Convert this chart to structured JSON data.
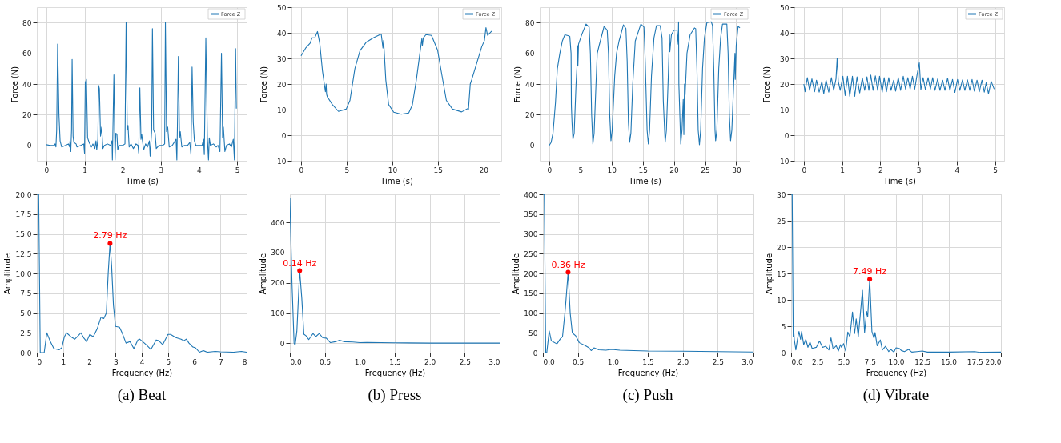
{
  "chart_data": [
    {
      "type": "line",
      "xlabel": "Time (s)",
      "ylabel": "Force (N)",
      "xlim": [
        -0.25,
        5.25
      ],
      "ylim": [
        -10,
        90
      ],
      "xticks": [
        0,
        1,
        2,
        3,
        4,
        5
      ],
      "yticks": [
        0,
        20,
        40,
        60,
        80
      ],
      "grid": true,
      "legend": "top right",
      "series": [
        {
          "name": "Force Z",
          "color": "#1f77b4",
          "x": [
            0,
            0.1,
            0.2,
            0.23,
            0.25,
            0.27,
            0.295,
            0.33,
            0.36,
            0.4,
            0.5,
            0.58,
            0.61,
            0.62,
            0.64,
            0.66,
            0.675,
            0.7,
            0.72,
            0.78,
            0.8,
            0.9,
            0.98,
            1.0,
            1.02,
            1.05,
            1.08,
            1.12,
            1.18,
            1.22,
            1.27,
            1.3,
            1.32,
            1.35,
            1.37,
            1.39,
            1.42,
            1.45,
            1.48,
            1.52,
            1.6,
            1.68,
            1.72,
            1.73,
            1.77,
            1.8,
            1.82,
            1.85,
            1.87,
            1.9,
            2.0,
            2.06,
            2.09,
            2.12,
            2.14,
            2.17,
            2.22,
            2.28,
            2.35,
            2.4,
            2.42,
            2.45,
            2.48,
            2.5,
            2.55,
            2.6,
            2.65,
            2.7,
            2.72,
            2.76,
            2.78,
            2.81,
            2.85,
            2.88,
            2.95,
            3.05,
            3.1,
            3.12,
            3.15,
            3.18,
            3.22,
            3.3,
            3.4,
            3.42,
            3.44,
            3.46,
            3.49,
            3.51,
            3.55,
            3.62,
            3.7,
            3.76,
            3.79,
            3.82,
            3.85,
            3.88,
            3.92,
            4.0,
            4.08,
            4.12,
            4.14,
            4.18,
            4.22,
            4.25,
            4.27,
            4.3,
            4.38,
            4.45,
            4.5,
            4.55,
            4.59,
            4.62,
            4.64,
            4.68,
            4.72,
            4.8,
            4.85,
            4.9,
            4.93,
            4.96,
            4.98
          ],
          "values": [
            0.5,
            0,
            0,
            1,
            -1,
            10,
            66,
            20,
            3,
            -1,
            0,
            1,
            -1,
            3,
            -4,
            10,
            56,
            6,
            2,
            1,
            -1,
            0,
            1,
            -5,
            41,
            43,
            5,
            2,
            -1,
            1,
            -2,
            3,
            -3,
            4,
            39,
            37,
            6,
            12,
            -2,
            0,
            1,
            0,
            3,
            -9.5,
            46,
            -9.5,
            8,
            7,
            -3,
            0,
            0,
            1,
            80,
            10,
            13,
            -1,
            1,
            -2,
            1,
            0,
            -5,
            37.5,
            4,
            7,
            -3,
            1,
            -1,
            3,
            -7,
            10,
            76,
            10,
            8,
            -2,
            0,
            0,
            1,
            80,
            9,
            12,
            -1,
            0,
            4,
            -9.5,
            20,
            58,
            5,
            9,
            -1,
            0,
            0,
            2,
            -6,
            51,
            15,
            3,
            0,
            0,
            0,
            4,
            -6,
            70,
            5,
            -9.5,
            5,
            0,
            1,
            -1,
            0,
            -4,
            60,
            5,
            12,
            -4,
            0,
            1,
            -1,
            4,
            -9.5,
            63,
            24
          ]
        }
      ]
    },
    {
      "type": "line",
      "xlabel": "Time (s)",
      "ylabel": "Force (N)",
      "xlim": [
        -1.05,
        21.95
      ],
      "ylim": [
        -10,
        50
      ],
      "xticks": [
        0,
        5,
        10,
        15,
        20
      ],
      "yticks": [
        -10,
        0,
        10,
        20,
        30,
        40,
        50
      ],
      "grid": true,
      "legend": "top right",
      "series": [
        {
          "name": "Force Z",
          "color": "#1f77b4",
          "x": [
            0,
            0.5,
            1,
            1.2,
            1.5,
            1.8,
            2.05,
            2.35,
            2.67,
            2.75,
            2.8,
            2.88,
            3.43,
            4.1,
            4.95,
            5.36,
            5.9,
            6.46,
            7.14,
            7.97,
            8.79,
            8.98,
            9.05,
            9.29,
            9.6,
            10.16,
            10.99,
            11.8,
            12.2,
            12.64,
            12.97,
            13.24,
            13.3,
            13.4,
            13.7,
            14.3,
            14.97,
            15.4,
            15.93,
            16.6,
            17.6,
            18.27,
            18.35,
            18.55,
            18.7,
            19.8,
            20.1,
            20.27,
            20.45,
            20.9
          ],
          "values": [
            31,
            34,
            36,
            38,
            38,
            40.5,
            35.9,
            25,
            17,
            20,
            16,
            15,
            12,
            9.3,
            10.2,
            13.6,
            26,
            33,
            36.3,
            38.1,
            39.5,
            34,
            37,
            21.6,
            12,
            9,
            8.2,
            8.7,
            11.8,
            21.6,
            30.5,
            37.7,
            35,
            38,
            39.3,
            39,
            33.2,
            24.3,
            13.6,
            10.2,
            9.1,
            10.4,
            10,
            20,
            21.6,
            34.5,
            37,
            42,
            39,
            40.7
          ]
        }
      ]
    },
    {
      "type": "line",
      "xlabel": "Time (s)",
      "ylabel": "Force (N)",
      "xlim": [
        -1.53,
        32.13
      ],
      "ylim": [
        -10,
        90
      ],
      "xticks": [
        0,
        5,
        10,
        15,
        20,
        25,
        30
      ],
      "yticks": [
        0,
        20,
        40,
        60,
        80
      ],
      "grid": true,
      "legend": "top right",
      "series": [
        {
          "name": "Force Z",
          "color": "#1f77b4",
          "x": [
            0,
            0.3,
            0.6,
            1.0,
            1.3,
            1.7,
            2.1,
            2.5,
            3.0,
            3.3,
            3.5,
            3.55,
            3.65,
            3.8,
            4.0,
            4.3,
            4.5,
            4.55,
            4.6,
            4.7,
            5.2,
            5.9,
            6.4,
            6.6,
            6.8,
            7.0,
            7.2,
            7.5,
            7.7,
            8.0,
            8.8,
            9.3,
            9.5,
            9.7,
            9.9,
            10.1,
            10.5,
            10.8,
            11.2,
            11.9,
            12.3,
            12.5,
            12.7,
            12.9,
            13.1,
            13.4,
            13.8,
            14.7,
            15.2,
            15.4,
            15.7,
            15.9,
            16.1,
            16.4,
            16.8,
            17.2,
            17.8,
            18.1,
            18.3,
            18.4,
            18.6,
            18.8,
            19.1,
            19.3,
            19.35,
            19.6,
            20.0,
            20.5,
            20.7,
            20.75,
            20.8,
            21.1,
            21.3,
            21.5,
            21.6,
            21.7,
            21.8,
            22.1,
            22.6,
            23.3,
            23.5,
            23.7,
            23.9,
            24.1,
            24.3,
            24.6,
            24.9,
            25.3,
            26.0,
            26.2,
            26.4,
            26.6,
            26.7,
            26.9,
            27.2,
            27.5,
            27.8,
            28.5,
            28.7,
            28.9,
            29.1,
            29.3,
            29.6,
            29.8,
            29.85,
            30.0,
            30.3,
            30.6
          ],
          "values": [
            0,
            2,
            8,
            28,
            50,
            60,
            68,
            72,
            71.5,
            71,
            60,
            26,
            15,
            4,
            8,
            40,
            55,
            65,
            52,
            66,
            72,
            79,
            77,
            60,
            20,
            1,
            8,
            40,
            60,
            65,
            77.5,
            75,
            60,
            20,
            3,
            10,
            45,
            60,
            68,
            78.5,
            76,
            55,
            15,
            2,
            8,
            40,
            68,
            79,
            77,
            55,
            10,
            1,
            10,
            45,
            70,
            78,
            78,
            70,
            29,
            20,
            2,
            10,
            45,
            72,
            61,
            72,
            75,
            75,
            66,
            80.5,
            40,
            1,
            10,
            30,
            7,
            40,
            33,
            60,
            72,
            76.5,
            76,
            50,
            10,
            0.5,
            10,
            50,
            70,
            80,
            80.5,
            78,
            50,
            10,
            3,
            10,
            50,
            70,
            79,
            79,
            60,
            20,
            3,
            10,
            40,
            60,
            43,
            65,
            77.5,
            76.5
          ]
        }
      ]
    },
    {
      "type": "line",
      "xlabel": "Time (s)",
      "ylabel": "Force (N)",
      "xlim": [
        -0.25,
        5.24
      ],
      "ylim": [
        -10,
        50
      ],
      "xticks": [
        0,
        1,
        2,
        3,
        4,
        5
      ],
      "yticks": [
        -10,
        0,
        10,
        20,
        30,
        40,
        50
      ],
      "grid": true,
      "legend": "top right",
      "series": [
        {
          "name": "Force Z",
          "color": "#1f77b4",
          "x": [
            0,
            0.03,
            0.09,
            0.15,
            0.21,
            0.28,
            0.33,
            0.4,
            0.47,
            0.52,
            0.58,
            0.65,
            0.72,
            0.78,
            0.84,
            0.87,
            0.9,
            0.95,
            1.02,
            1.08,
            1.14,
            1.2,
            1.27,
            1.33,
            1.39,
            1.46,
            1.53,
            1.59,
            1.65,
            1.7,
            1.75,
            1.81,
            1.87,
            1.93,
            1.98,
            2.05,
            2.1,
            2.16,
            2.22,
            2.28,
            2.35,
            2.4,
            2.47,
            2.53,
            2.6,
            2.66,
            2.72,
            2.78,
            2.84,
            2.9,
            2.96,
            3.02,
            3.06,
            3.12,
            3.18,
            3.25,
            3.31,
            3.37,
            3.43,
            3.5,
            3.56,
            3.63,
            3.69,
            3.76,
            3.82,
            3.89,
            3.95,
            4.02,
            4.08,
            4.15,
            4.21,
            4.28,
            4.34,
            4.4,
            4.46,
            4.53,
            4.59,
            4.66,
            4.72,
            4.77,
            4.83,
            4.9,
            4.98
          ],
          "values": [
            20,
            17,
            22.5,
            17.5,
            22,
            17,
            21.5,
            16.8,
            21,
            16.2,
            21.5,
            16.8,
            22.5,
            17.5,
            22,
            30,
            21,
            17.5,
            23,
            15.5,
            23,
            15.2,
            23,
            15.2,
            22.8,
            16.5,
            22.4,
            17.5,
            22.8,
            17.5,
            23.5,
            17.5,
            23.2,
            17.5,
            23,
            16.8,
            22.5,
            17,
            22.5,
            17.5,
            21.5,
            17.2,
            22.5,
            17.5,
            23,
            18,
            22.5,
            18,
            23,
            18,
            23.5,
            28.3,
            17.8,
            22.5,
            17.8,
            22.5,
            18,
            22.5,
            17.5,
            22,
            17.5,
            21.5,
            17.5,
            22.3,
            17.5,
            21.8,
            16.7,
            21.8,
            17.5,
            21.6,
            17.5,
            21.6,
            17.5,
            21.8,
            17.2,
            21.5,
            17,
            21.5,
            16.8,
            20.5,
            16.2,
            21,
            18
          ]
        }
      ]
    },
    {
      "type": "line",
      "xlabel": "Frequency (Hz)",
      "ylabel": "Amplitude",
      "xlim": [
        0,
        8
      ],
      "ylim": [
        0,
        20
      ],
      "xticks": [
        0,
        1,
        2,
        3,
        4,
        5,
        6,
        7,
        8
      ],
      "yticks": [
        {
          "value": 0,
          "label": "0.0"
        },
        2.5,
        {
          "value": 5,
          "label": "5.0"
        },
        7.5,
        {
          "value": 10,
          "label": "10.0"
        },
        12.5,
        {
          "value": 15,
          "label": "15.0"
        },
        17.5,
        {
          "value": 20,
          "label": "20.0"
        }
      ],
      "grid": true,
      "annotations": [
        {
          "text": "2.79 Hz",
          "x": 2.79,
          "y": 13.8
        },
        "(a) Beat"
      ],
      "series": [
        {
          "color": "#1f77b4",
          "x": [
            0,
            0.07,
            0.13,
            0.28,
            0.38,
            0.5,
            0.65,
            0.85,
            0.95,
            1.05,
            1.13,
            1.3,
            1.45,
            1.6,
            1.68,
            1.8,
            1.9,
            2.02,
            2.15,
            2.3,
            2.45,
            2.55,
            2.65,
            2.72,
            2.79,
            2.85,
            2.92,
            3.0,
            3.15,
            3.25,
            3.4,
            3.55,
            3.7,
            3.85,
            3.92,
            4.1,
            4.2,
            4.35,
            4.55,
            4.65,
            4.8,
            5.0,
            5.1,
            5.3,
            5.5,
            5.6,
            5.7,
            5.8,
            5.95,
            6.05,
            6.2,
            6.35,
            6.5,
            6.8,
            7.0,
            7.5,
            7.8,
            8.0
          ],
          "values": [
            20,
            20,
            0,
            0,
            2.5,
            1.5,
            0.5,
            0.35,
            0.6,
            2,
            2.5,
            2,
            1.7,
            2.2,
            2.5,
            1.8,
            1.4,
            2.3,
            2,
            3,
            4.5,
            4.3,
            5,
            10,
            13.8,
            11,
            6,
            3.3,
            3.2,
            2.5,
            1.2,
            1.4,
            0.5,
            1.6,
            1.7,
            1.2,
            0.9,
            0.4,
            1.6,
            1.5,
            1.0,
            2.3,
            2.3,
            1.9,
            1.7,
            1.5,
            1.7,
            1.2,
            0.7,
            0.6,
            0.05,
            0.25,
            0.05,
            0.15,
            0.1,
            0.05,
            0.15,
            0.05
          ]
        },
        {
          "type": "scatter",
          "color": "#ff0000",
          "x": [
            2.79
          ],
          "values": [
            13.8
          ]
        }
      ]
    },
    {
      "type": "line",
      "xlabel": "Frequency (Hz)",
      "ylabel": "Amplitude",
      "xlim": [
        0,
        3
      ],
      "ylim": [
        -31,
        493
      ],
      "xticks": [
        {
          "value": 0,
          "label": "0.0"
        },
        0.5,
        {
          "value": 1,
          "label": "1.0"
        },
        1.5,
        {
          "value": 2,
          "label": "2.0"
        },
        2.5,
        {
          "value": 3,
          "label": "3.0"
        }
      ],
      "yticks": [
        0,
        100,
        200,
        300,
        400
      ],
      "grid": true,
      "annotations": [
        {
          "text": "0.14 Hz",
          "x": 0.14,
          "y": 240
        },
        "(b) Press"
      ],
      "series": [
        {
          "color": "#1f77b4",
          "x": [
            0,
            0.03,
            0.06,
            0.075,
            0.1,
            0.14,
            0.17,
            0.2,
            0.23,
            0.27,
            0.33,
            0.37,
            0.42,
            0.47,
            0.52,
            0.58,
            0.65,
            0.71,
            0.78,
            0.9,
            1.0,
            1.1,
            1.3,
            1.5,
            2.0,
            2.5,
            3.0
          ],
          "values": [
            480,
            200,
            0,
            -6,
            40,
            240,
            150,
            30,
            25,
            12,
            32,
            22,
            32,
            18,
            17,
            2,
            5,
            10,
            5,
            4,
            2,
            2.5,
            2,
            1.5,
            0.5,
            0.5,
            0.3
          ]
        },
        {
          "type": "scatter",
          "color": "#ff0000",
          "x": [
            0.14
          ],
          "values": [
            240
          ]
        }
      ]
    },
    {
      "type": "line",
      "xlabel": "Frequency (Hz)",
      "ylabel": "Amplitude",
      "xlim": [
        0,
        3
      ],
      "ylim": [
        0,
        400
      ],
      "xticks": [
        {
          "value": 0,
          "label": "0.0"
        },
        0.5,
        {
          "value": 1,
          "label": "1.0"
        },
        1.5,
        {
          "value": 2,
          "label": "2.0"
        },
        2.5,
        {
          "value": 3,
          "label": "3.0"
        }
      ],
      "yticks": [
        0,
        50,
        100,
        150,
        200,
        250,
        300,
        350,
        400
      ],
      "grid": true,
      "annotations": [
        {
          "text": "0.36 Hz",
          "x": 0.36,
          "y": 203
        },
        "(c) Push"
      ],
      "series": [
        {
          "color": "#1f77b4",
          "x": [
            0,
            0.02,
            0.04,
            0.055,
            0.09,
            0.12,
            0.2,
            0.25,
            0.28,
            0.32,
            0.36,
            0.39,
            0.42,
            0.47,
            0.52,
            0.6,
            0.66,
            0.69,
            0.73,
            0.8,
            0.9,
            0.98,
            1.1,
            1.3,
            1.5,
            2.0,
            2.5,
            3.0
          ],
          "values": [
            400,
            400,
            0,
            0,
            55,
            30,
            22,
            35,
            40,
            110,
            203,
            100,
            50,
            42,
            25,
            18,
            12,
            5,
            12,
            7,
            6,
            8,
            6,
            5,
            4,
            3.5,
            2.5,
            1.5
          ]
        },
        {
          "type": "scatter",
          "color": "#ff0000",
          "x": [
            0.36
          ],
          "values": [
            203
          ]
        }
      ]
    },
    {
      "type": "line",
      "xlabel": "Frequency (Hz)",
      "ylabel": "Amplitude",
      "xlim": [
        0,
        20
      ],
      "ylim": [
        0,
        30
      ],
      "xticks": [
        {
          "value": 0,
          "label": "0.0"
        },
        2.5,
        {
          "value": 5,
          "label": "5.0"
        },
        7.5,
        {
          "value": 10,
          "label": "10.0"
        },
        12.5,
        {
          "value": 15,
          "label": "15.0"
        },
        17.5,
        {
          "value": 20,
          "label": "20.0"
        }
      ],
      "yticks": [
        0,
        5,
        10,
        15,
        20,
        25,
        30
      ],
      "grid": true,
      "annotations": [
        {
          "text": "7.49 Hz",
          "x": 7.49,
          "y": 13.9
        },
        "(d) Vibrate"
      ],
      "series": [
        {
          "color": "#1f77b4",
          "x": [
            0,
            0.1,
            0.2,
            0.25,
            0.3,
            0.45,
            0.6,
            0.75,
            0.9,
            1.0,
            1.2,
            1.4,
            1.6,
            1.8,
            2.0,
            2.4,
            2.7,
            3.0,
            3.3,
            3.6,
            3.8,
            4.0,
            4.3,
            4.5,
            4.7,
            4.8,
            5.0,
            5.2,
            5.4,
            5.6,
            5.85,
            6.05,
            6.2,
            6.4,
            6.8,
            7.0,
            7.2,
            7.3,
            7.49,
            7.7,
            7.9,
            8.0,
            8.2,
            8.5,
            8.7,
            9.0,
            9.3,
            9.5,
            9.8,
            10.0,
            10.3,
            10.5,
            10.8,
            11.2,
            11.5,
            12,
            12.5,
            13,
            15,
            17.5,
            18,
            20
          ],
          "values": [
            30,
            30,
            3,
            4.2,
            2.5,
            0.5,
            2.5,
            4,
            2.5,
            4,
            1.5,
            2.5,
            1,
            2,
            0.8,
            1.0,
            2.2,
            1.0,
            1.2,
            0.5,
            2.8,
            0.7,
            1.3,
            0.3,
            1.5,
            1.0,
            1.7,
            0.3,
            3.9,
            3.0,
            7.7,
            3.6,
            6.4,
            3.0,
            11.8,
            3.8,
            7.8,
            6.8,
            13.9,
            4,
            2.7,
            3.8,
            1.3,
            2.4,
            0.5,
            1.2,
            0.2,
            0.6,
            0.1,
            0.9,
            0.8,
            0.4,
            0.2,
            0.6,
            0.1,
            0.2,
            0.3,
            0.1,
            0.1,
            0.2,
            0.05,
            0.1
          ]
        },
        {
          "type": "scatter",
          "color": "#ff0000",
          "x": [
            7.49
          ],
          "values": [
            13.9
          ]
        }
      ]
    }
  ]
}
